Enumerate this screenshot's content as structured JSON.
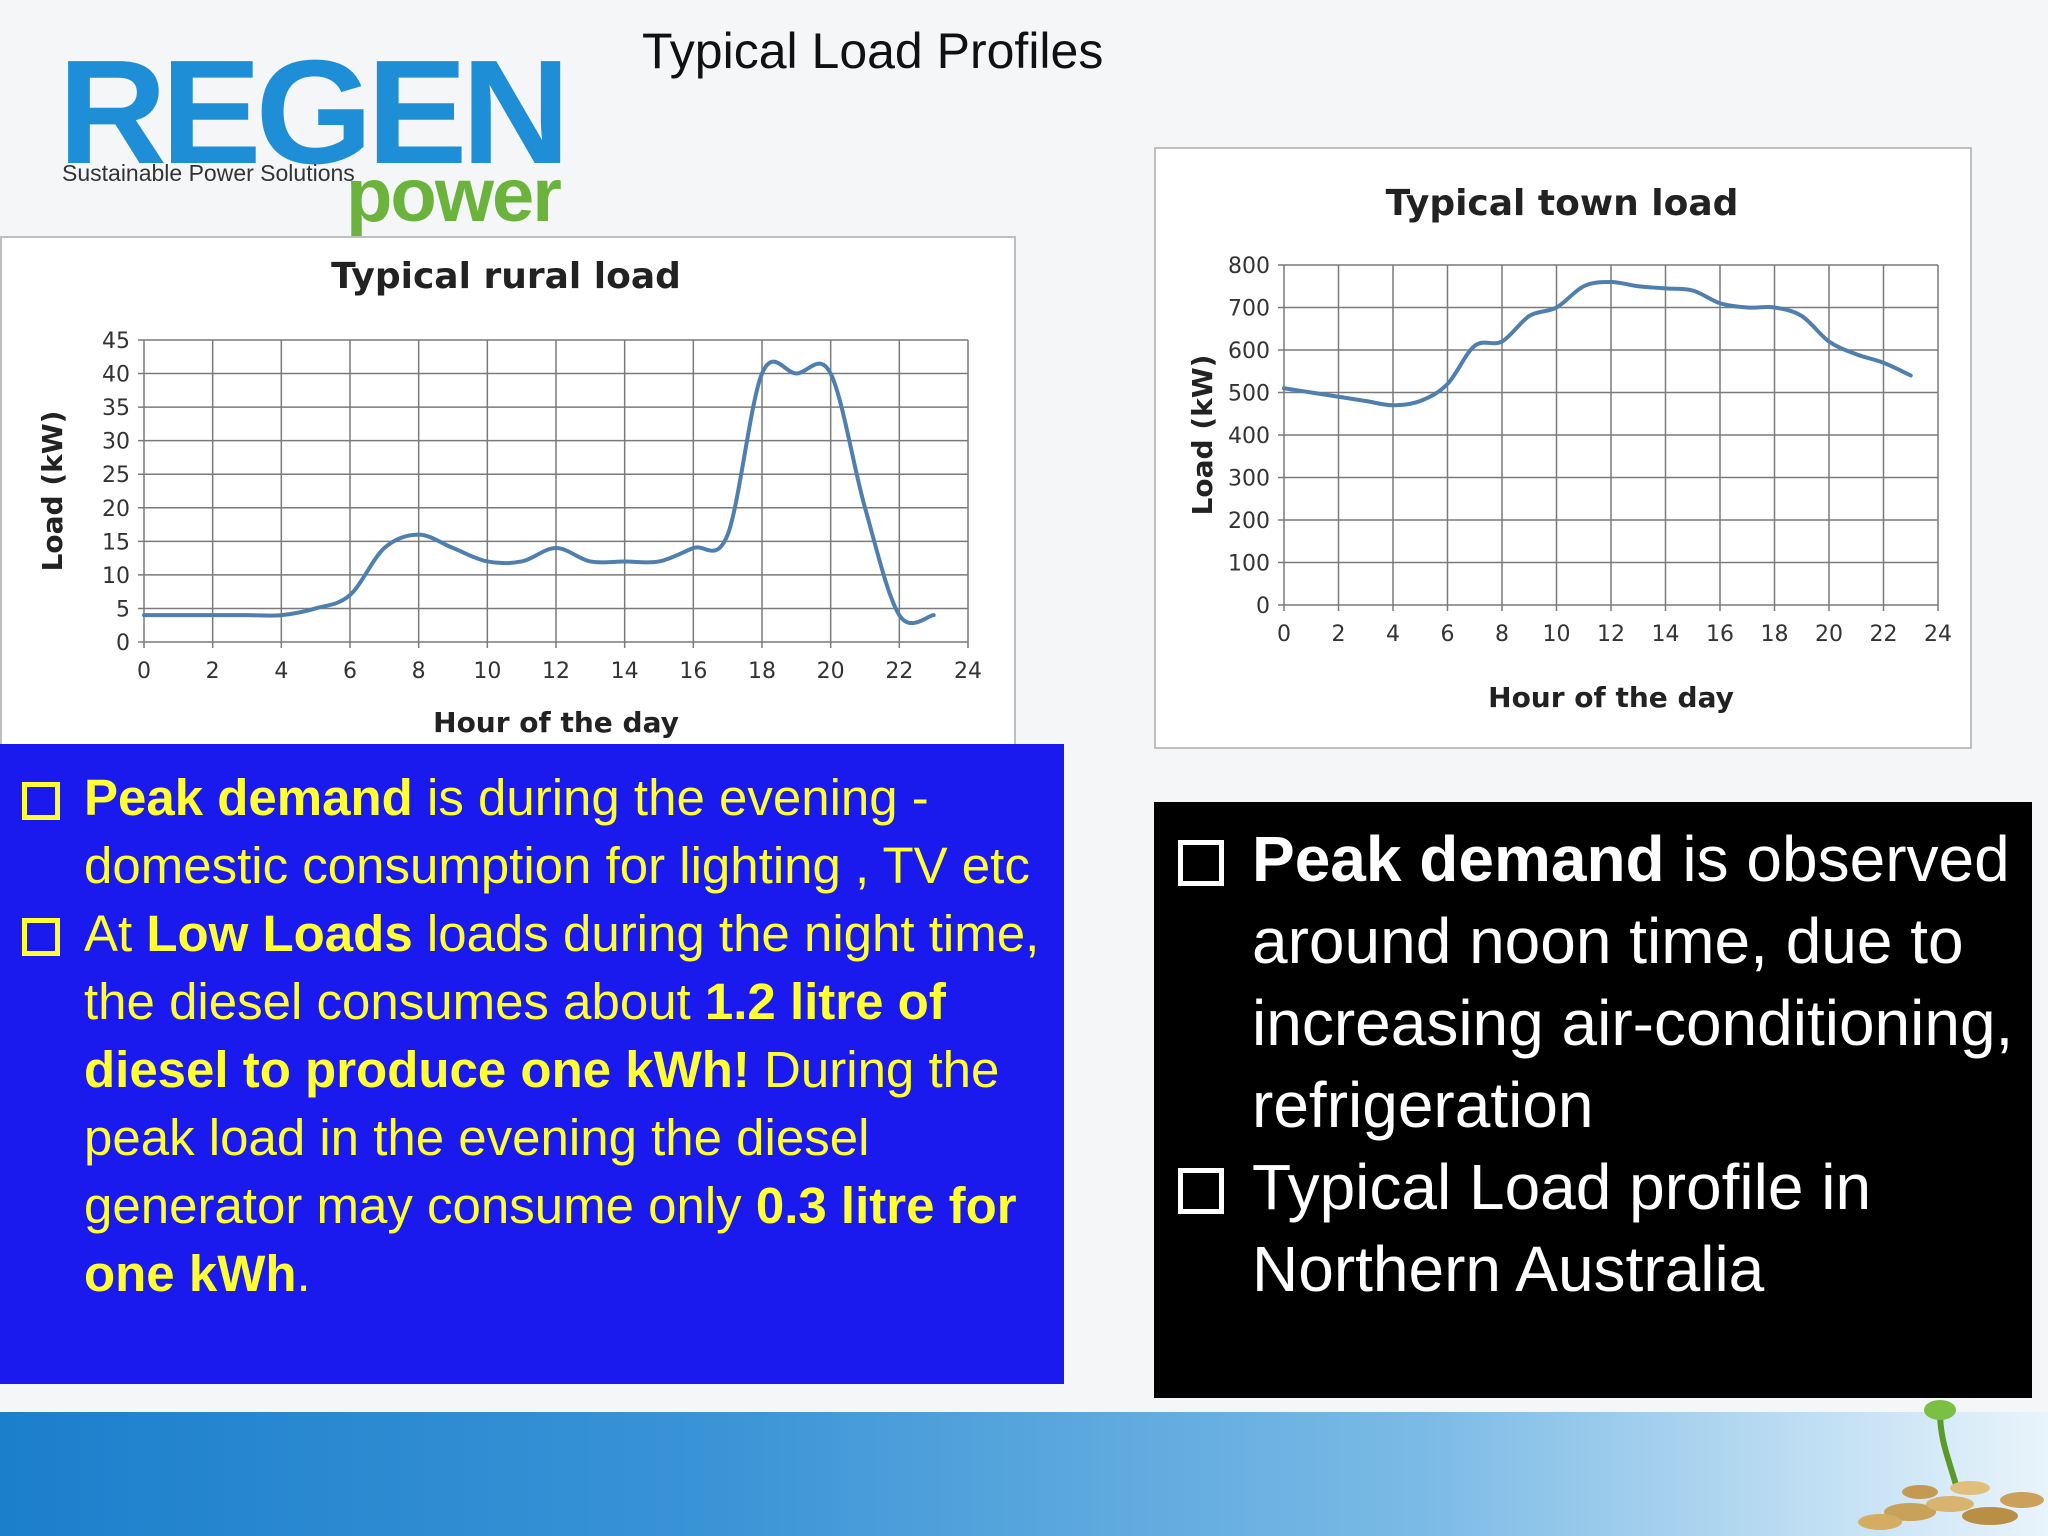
{
  "slide_title": "Typical Load Profiles",
  "logo": {
    "brand": "REGEN",
    "tagline": "Sustainable Power Solutions",
    "sub": "power"
  },
  "colors": {
    "series": "#4f7fae",
    "rural_panel": "#1a1aee",
    "rural_text": "#ffff33",
    "town_panel": "#000000",
    "town_text": "#ffffff"
  },
  "chart_data": [
    {
      "type": "line",
      "title": "Typical rural load",
      "xlabel": "Hour of the day",
      "ylabel": "Load (kW)",
      "xlim": [
        0,
        24
      ],
      "ylim": [
        0,
        45
      ],
      "xticks": [
        0,
        2,
        4,
        6,
        8,
        10,
        12,
        14,
        16,
        18,
        20,
        22,
        24
      ],
      "yticks": [
        0,
        5,
        10,
        15,
        20,
        25,
        30,
        35,
        40,
        45
      ],
      "grid": true,
      "series": [
        {
          "x": [
            0,
            1,
            2,
            3,
            4,
            5,
            6,
            7,
            8,
            9,
            10,
            11,
            12,
            13,
            14,
            15,
            16,
            17,
            18,
            19,
            20,
            21,
            22,
            23
          ],
          "values": [
            4,
            4,
            4,
            4,
            4,
            5,
            7,
            14,
            16,
            14,
            12,
            12,
            14,
            12,
            12,
            12,
            14,
            16,
            40,
            40,
            40,
            20,
            4,
            4
          ]
        }
      ]
    },
    {
      "type": "line",
      "title": "Typical town load",
      "xlabel": "Hour of the day",
      "ylabel": "Load (kW)",
      "xlim": [
        0,
        24
      ],
      "ylim": [
        0,
        800
      ],
      "xticks": [
        0,
        2,
        4,
        6,
        8,
        10,
        12,
        14,
        16,
        18,
        20,
        22,
        24
      ],
      "yticks": [
        0,
        100,
        200,
        300,
        400,
        500,
        600,
        700,
        800
      ],
      "grid": true,
      "series": [
        {
          "x": [
            0,
            1,
            2,
            3,
            4,
            5,
            6,
            7,
            8,
            9,
            10,
            11,
            12,
            13,
            14,
            15,
            16,
            17,
            18,
            19,
            20,
            21,
            22,
            23
          ],
          "values": [
            510,
            500,
            490,
            480,
            470,
            480,
            520,
            610,
            620,
            680,
            700,
            750,
            760,
            750,
            745,
            740,
            710,
            700,
            700,
            680,
            620,
            590,
            570,
            540
          ]
        }
      ]
    }
  ],
  "rural_bullets": [
    {
      "segments": [
        {
          "text": "Peak demand",
          "bold": true
        },
        {
          "text": " is during the evening - domestic consumption for lighting , TV etc",
          "bold": false
        }
      ]
    },
    {
      "segments": [
        {
          "text": "At ",
          "bold": false
        },
        {
          "text": "Low Loads",
          "bold": true
        },
        {
          "text": "  loads during the night time, the diesel consumes about ",
          "bold": false
        },
        {
          "text": "1.2 litre of diesel to produce one kWh!",
          "bold": true
        },
        {
          "text": " During the peak load in the evening the diesel generator may consume only ",
          "bold": false
        },
        {
          "text": "0.3 litre for one kWh",
          "bold": true
        },
        {
          "text": ".",
          "bold": false
        }
      ]
    }
  ],
  "town_bullets": [
    {
      "segments": [
        {
          "text": "Peak demand",
          "bold": true
        },
        {
          "text": " is observed around noon time, due to increasing air-conditioning, refrigeration",
          "bold": false
        }
      ]
    },
    {
      "segments": [
        {
          "text": "Typical Load profile in Northern Australia",
          "bold": false
        }
      ]
    }
  ]
}
